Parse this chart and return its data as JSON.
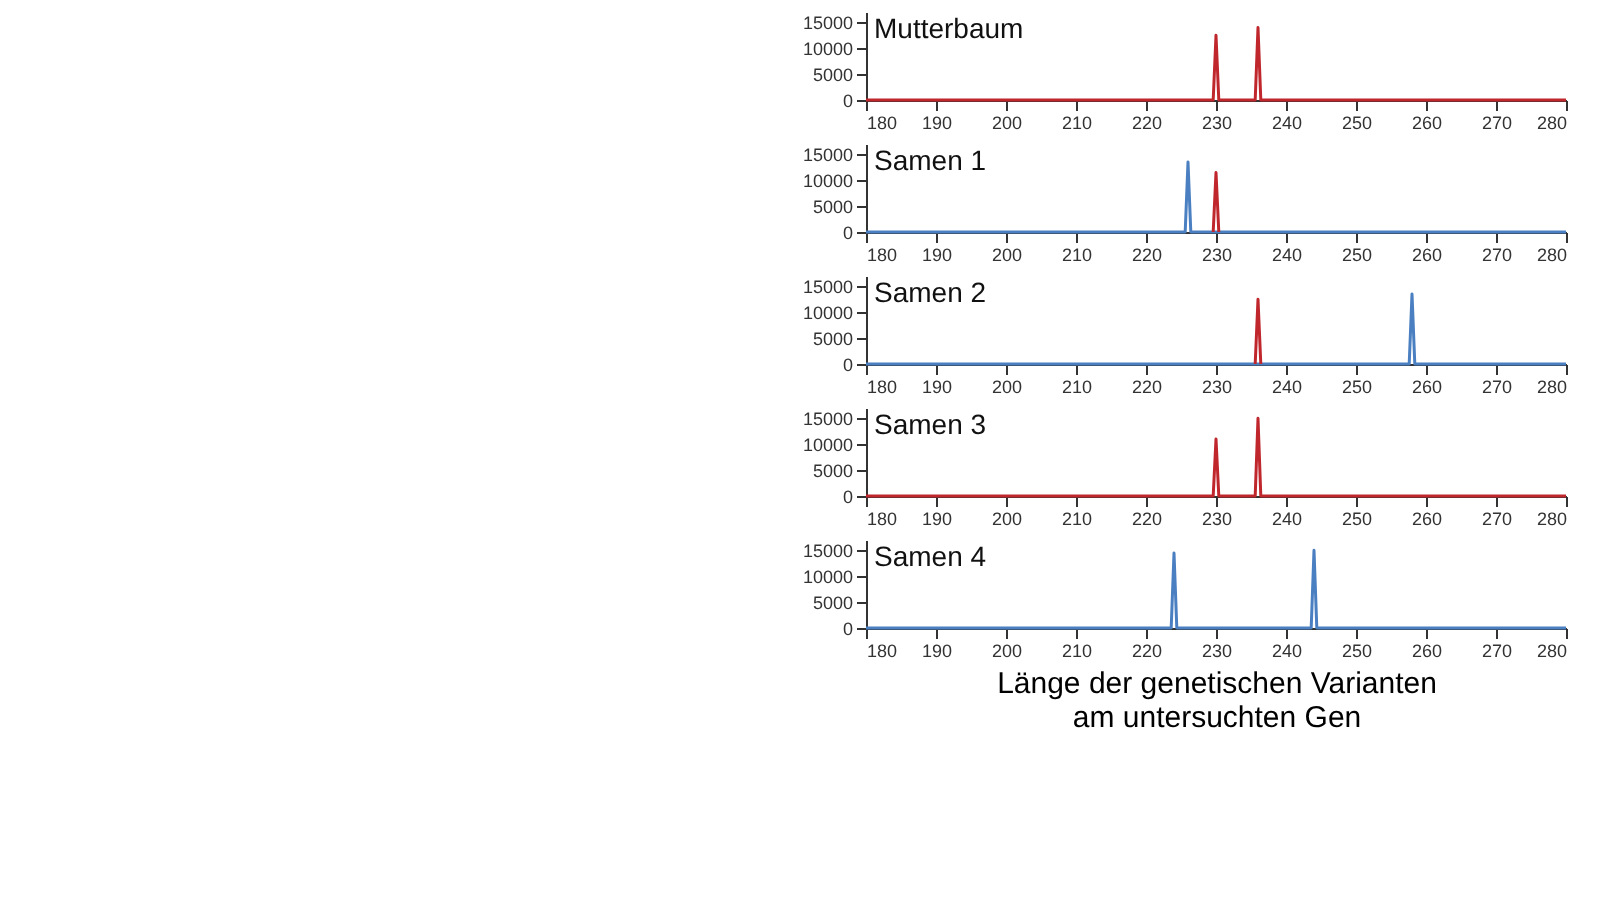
{
  "chart_data": [
    {
      "type": "line",
      "title": "Mutterbaum",
      "xlim": [
        180,
        280
      ],
      "xticks": [
        180,
        190,
        200,
        210,
        220,
        230,
        240,
        250,
        260,
        270,
        280
      ],
      "ylim": [
        0,
        17000
      ],
      "yticks": [
        0,
        5000,
        10000,
        15000
      ],
      "grid": false,
      "legend": false,
      "marker": "none",
      "line_style": "solid",
      "series": [
        {
          "color": "#c0272d",
          "x": [
            180,
            229.6,
            230,
            230.4,
            235.6,
            236,
            236.4,
            280
          ],
          "values": [
            0,
            0,
            12500,
            0,
            0,
            14000,
            0,
            0
          ]
        }
      ]
    },
    {
      "type": "line",
      "title": "Samen 1",
      "xlim": [
        180,
        280
      ],
      "xticks": [
        180,
        190,
        200,
        210,
        220,
        230,
        240,
        250,
        260,
        270,
        280
      ],
      "ylim": [
        0,
        17000
      ],
      "yticks": [
        0,
        5000,
        10000,
        15000
      ],
      "grid": false,
      "legend": false,
      "marker": "none",
      "line_style": "solid",
      "series": [
        {
          "color": "#4a7fc1",
          "x": [
            180,
            225.6,
            226,
            226.4,
            280
          ],
          "values": [
            0,
            0,
            13500,
            0,
            0
          ]
        },
        {
          "color": "#c0272d",
          "x": [
            229.6,
            230,
            230.4
          ],
          "values": [
            0,
            11500,
            0
          ]
        }
      ]
    },
    {
      "type": "line",
      "title": "Samen 2",
      "xlim": [
        180,
        280
      ],
      "xticks": [
        180,
        190,
        200,
        210,
        220,
        230,
        240,
        250,
        260,
        270,
        280
      ],
      "ylim": [
        0,
        17000
      ],
      "yticks": [
        0,
        5000,
        10000,
        15000
      ],
      "grid": false,
      "legend": false,
      "marker": "none",
      "line_style": "solid",
      "series": [
        {
          "color": "#4a7fc1",
          "x": [
            180,
            257.6,
            258,
            258.4,
            280
          ],
          "values": [
            0,
            0,
            13500,
            0,
            0
          ]
        },
        {
          "color": "#c0272d",
          "x": [
            235.6,
            236,
            236.4
          ],
          "values": [
            0,
            12500,
            0
          ]
        }
      ]
    },
    {
      "type": "line",
      "title": "Samen 3",
      "xlim": [
        180,
        280
      ],
      "xticks": [
        180,
        190,
        200,
        210,
        220,
        230,
        240,
        250,
        260,
        270,
        280
      ],
      "ylim": [
        0,
        17000
      ],
      "yticks": [
        0,
        5000,
        10000,
        15000
      ],
      "grid": false,
      "legend": false,
      "marker": "none",
      "line_style": "solid",
      "series": [
        {
          "color": "#c0272d",
          "x": [
            180,
            229.6,
            230,
            230.4,
            235.6,
            236,
            236.4,
            280
          ],
          "values": [
            0,
            0,
            11000,
            0,
            0,
            15000,
            0,
            0
          ]
        }
      ]
    },
    {
      "type": "line",
      "title": "Samen 4",
      "xlabel": "Länge der genetischen Varianten\nam untersuchten Gen",
      "xlim": [
        180,
        280
      ],
      "xticks": [
        180,
        190,
        200,
        210,
        220,
        230,
        240,
        250,
        260,
        270,
        280
      ],
      "ylim": [
        0,
        17000
      ],
      "yticks": [
        0,
        5000,
        10000,
        15000
      ],
      "grid": false,
      "legend": false,
      "marker": "none",
      "line_style": "solid",
      "series": [
        {
          "color": "#4a7fc1",
          "x": [
            180,
            223.6,
            224,
            224.4,
            243.6,
            244,
            244.4,
            280
          ],
          "values": [
            0,
            0,
            14500,
            0,
            0,
            15000,
            0,
            0
          ]
        }
      ]
    }
  ]
}
